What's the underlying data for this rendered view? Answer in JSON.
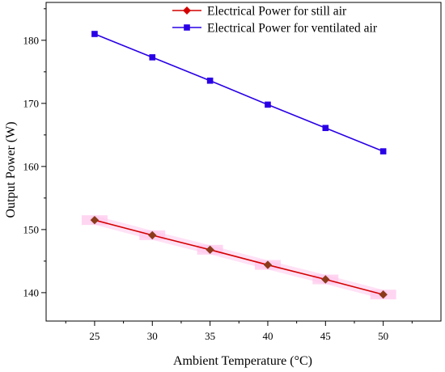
{
  "chart_data": {
    "type": "line",
    "xlabel": "Ambient Temperature (°C)",
    "ylabel": "Output Power (W)",
    "x": [
      25,
      30,
      35,
      40,
      45,
      50
    ],
    "xlim": [
      20.8,
      55
    ],
    "ylim": [
      135.5,
      186
    ],
    "xticks": [
      25,
      30,
      35,
      40,
      45,
      50
    ],
    "yticks": [
      140,
      150,
      160,
      170,
      180
    ],
    "grid": false,
    "legend_position": "top-right",
    "series": [
      {
        "name": "Electrical Power for still air",
        "values": [
          151.5,
          149.1,
          146.8,
          144.4,
          142.1,
          139.7
        ],
        "color": "#d40000",
        "marker": "diamond",
        "marker_color": "#8b3a1a",
        "band_color": "#ffc8ec"
      },
      {
        "name": "Electrical Power for ventilated air",
        "values": [
          181.0,
          177.3,
          173.6,
          169.8,
          166.1,
          162.4
        ],
        "color": "#2a00e6",
        "marker": "square",
        "marker_color": "#2a00e6"
      }
    ]
  }
}
